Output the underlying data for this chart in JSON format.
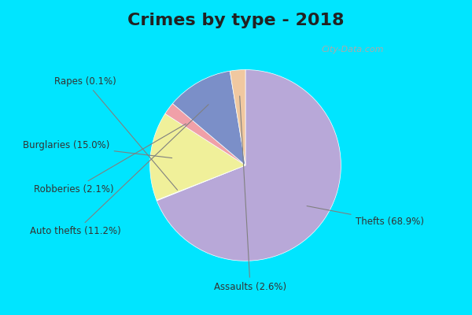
{
  "title": "Crimes by type - 2018",
  "labels": [
    "Thefts",
    "Burglaries",
    "Auto thefts",
    "Assaults",
    "Robberies",
    "Rapes"
  ],
  "values": [
    68.9,
    15.0,
    11.2,
    2.6,
    2.1,
    0.1
  ],
  "colors": [
    "#b8a8d8",
    "#f0f09a",
    "#7b8fc8",
    "#f0c8a0",
    "#f0a0a8",
    "#d8e8d0"
  ],
  "background_top": "#00e5ff",
  "background_main": "#d4ecd4",
  "title_fontsize": 16,
  "label_fontsize": 9
}
